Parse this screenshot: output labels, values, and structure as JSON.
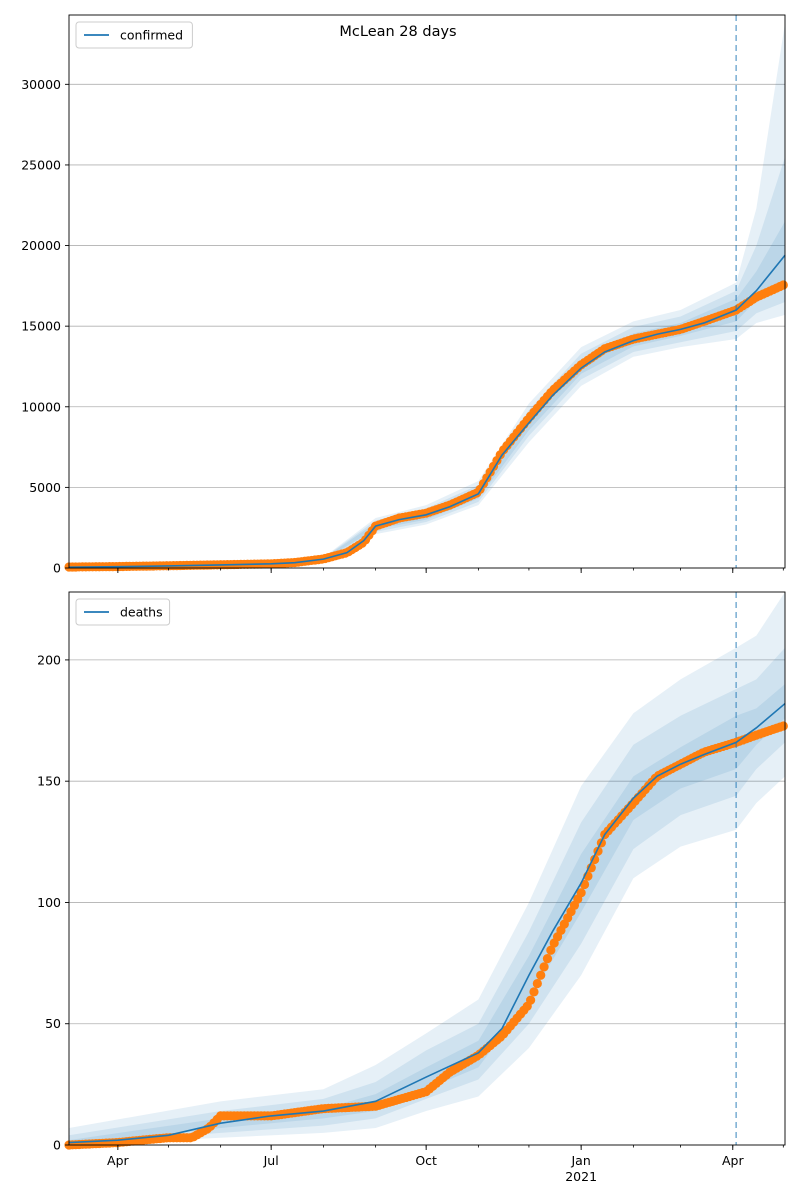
{
  "title": "McLean 28 days",
  "colors": {
    "model_line": "#1f77b4",
    "band_fill": "#1f77b4",
    "observed_points": "#ff7f0e",
    "forecast_divider": "#1f77b4",
    "grid": "#b0b0b0"
  },
  "chart_data": [
    {
      "type": "line",
      "title": "McLean 28 days",
      "legend": {
        "entries": [
          "confirmed"
        ],
        "position": "top-left"
      },
      "x_axis": {
        "type": "date",
        "range": [
          "2020-03-03",
          "2021-05-02"
        ],
        "tick_labels": [
          {
            "date": "2020-04-01",
            "label": "Apr"
          },
          {
            "date": "2020-07-01",
            "label": "Jul"
          },
          {
            "date": "2020-10-01",
            "label": "Oct"
          },
          {
            "date": "2021-01-01",
            "label": "Jan",
            "sublabel": "2021"
          },
          {
            "date": "2021-04-01",
            "label": "Apr"
          }
        ],
        "tick_labels_visible": false
      },
      "y_axis": {
        "range": [
          0,
          34300
        ],
        "ticks": [
          0,
          5000,
          10000,
          15000,
          20000,
          25000,
          30000
        ]
      },
      "grid": {
        "y": true,
        "x": false
      },
      "forecast_start": "2021-04-03",
      "series": [
        {
          "name": "confirmed",
          "kind": "model",
          "x": [
            "2020-03-03",
            "2020-04-01",
            "2020-05-01",
            "2020-06-01",
            "2020-07-01",
            "2020-07-15",
            "2020-08-01",
            "2020-08-15",
            "2020-08-25",
            "2020-09-01",
            "2020-09-15",
            "2020-10-01",
            "2020-10-15",
            "2020-11-01",
            "2020-11-15",
            "2020-12-01",
            "2020-12-15",
            "2021-01-01",
            "2021-01-15",
            "2021-02-01",
            "2021-02-15",
            "2021-03-01",
            "2021-03-15",
            "2021-04-03",
            "2021-04-15",
            "2021-05-02"
          ],
          "y": [
            50,
            80,
            130,
            190,
            260,
            330,
            550,
            950,
            1700,
            2600,
            3000,
            3300,
            3800,
            4600,
            7000,
            9000,
            10700,
            12400,
            13400,
            14100,
            14500,
            14800,
            15200,
            16000,
            17200,
            19400
          ]
        },
        {
          "name": "",
          "kind": "observed",
          "x": [
            "2020-03-03",
            "2020-04-01",
            "2020-05-01",
            "2020-06-01",
            "2020-07-01",
            "2020-07-15",
            "2020-08-01",
            "2020-08-15",
            "2020-08-25",
            "2020-09-01",
            "2020-09-15",
            "2020-10-01",
            "2020-10-15",
            "2020-11-01",
            "2020-11-15",
            "2020-12-01",
            "2020-12-15",
            "2021-01-01",
            "2021-01-15",
            "2021-02-01",
            "2021-02-15",
            "2021-03-01",
            "2021-03-15",
            "2021-04-03",
            "2021-04-15",
            "2021-05-02"
          ],
          "y": [
            60,
            90,
            140,
            200,
            260,
            340,
            560,
            950,
            1600,
            2600,
            3100,
            3400,
            3900,
            4700,
            7200,
            9300,
            11000,
            12600,
            13600,
            14200,
            14500,
            14800,
            15300,
            16000,
            16800,
            17600
          ]
        }
      ],
      "bands": [
        {
          "x": [
            "2020-03-03",
            "2020-06-01",
            "2020-08-01",
            "2020-09-01",
            "2020-10-01",
            "2020-11-01",
            "2020-12-01",
            "2021-01-01",
            "2021-02-01",
            "2021-03-01",
            "2021-04-03",
            "2021-04-15",
            "2021-05-02"
          ],
          "lower": [
            30,
            150,
            450,
            2100,
            2700,
            3900,
            7800,
            11300,
            13100,
            13700,
            14200,
            15200,
            15700
          ],
          "upper": [
            70,
            230,
            650,
            3100,
            3900,
            5400,
            10200,
            13700,
            15300,
            16000,
            17700,
            22300,
            33800
          ]
        },
        {
          "x": [
            "2020-03-03",
            "2020-06-01",
            "2020-08-01",
            "2020-09-01",
            "2020-10-01",
            "2020-11-01",
            "2020-12-01",
            "2021-01-01",
            "2021-02-01",
            "2021-03-01",
            "2021-04-03",
            "2021-04-15",
            "2021-05-02"
          ],
          "lower": [
            35,
            160,
            480,
            2250,
            2850,
            4100,
            8200,
            11700,
            13400,
            14000,
            14700,
            15800,
            16500
          ],
          "upper": [
            65,
            220,
            620,
            2950,
            3700,
            5150,
            9800,
            13300,
            14950,
            15600,
            17200,
            20000,
            25500
          ]
        },
        {
          "x": [
            "2020-03-03",
            "2020-06-01",
            "2020-08-01",
            "2020-09-01",
            "2020-10-01",
            "2020-11-01",
            "2020-12-01",
            "2021-01-01",
            "2021-02-01",
            "2021-03-01",
            "2021-04-03",
            "2021-04-15",
            "2021-05-02"
          ],
          "lower": [
            40,
            170,
            510,
            2400,
            3000,
            4300,
            8550,
            12050,
            13750,
            14400,
            15300,
            16600,
            17800
          ],
          "upper": [
            60,
            210,
            590,
            2800,
            3550,
            4900,
            9450,
            12850,
            14550,
            15200,
            16700,
            18400,
            21500
          ]
        }
      ]
    },
    {
      "type": "line",
      "title": "",
      "legend": {
        "entries": [
          "deaths"
        ],
        "position": "top-left"
      },
      "x_axis": {
        "type": "date",
        "range": [
          "2020-03-03",
          "2021-05-02"
        ],
        "tick_labels": [
          {
            "date": "2020-04-01",
            "label": "Apr"
          },
          {
            "date": "2020-07-01",
            "label": "Jul"
          },
          {
            "date": "2020-10-01",
            "label": "Oct"
          },
          {
            "date": "2021-01-01",
            "label": "Jan",
            "sublabel": "2021"
          },
          {
            "date": "2021-04-01",
            "label": "Apr"
          }
        ],
        "tick_labels_visible": true
      },
      "y_axis": {
        "range": [
          0,
          228
        ],
        "ticks": [
          0,
          50,
          100,
          150,
          200
        ]
      },
      "grid": {
        "y": true,
        "x": false
      },
      "forecast_start": "2021-04-03",
      "series": [
        {
          "name": "deaths",
          "kind": "model",
          "x": [
            "2020-03-03",
            "2020-04-01",
            "2020-05-01",
            "2020-06-01",
            "2020-07-01",
            "2020-08-01",
            "2020-09-01",
            "2020-10-01",
            "2020-11-01",
            "2020-11-15",
            "2020-12-01",
            "2020-12-15",
            "2021-01-01",
            "2021-01-15",
            "2021-02-01",
            "2021-02-15",
            "2021-03-01",
            "2021-03-15",
            "2021-04-03",
            "2021-04-15",
            "2021-05-02"
          ],
          "y": [
            1,
            2,
            4,
            9,
            12,
            14,
            18,
            28,
            38,
            48,
            70,
            88,
            108,
            128,
            143,
            152,
            157,
            161,
            166,
            172,
            182
          ]
        },
        {
          "name": "",
          "kind": "observed",
          "x": [
            "2020-03-03",
            "2020-04-01",
            "2020-04-15",
            "2020-05-01",
            "2020-05-15",
            "2020-05-25",
            "2020-06-01",
            "2020-07-01",
            "2020-08-01",
            "2020-09-01",
            "2020-10-01",
            "2020-10-15",
            "2020-11-01",
            "2020-11-15",
            "2020-12-01",
            "2020-12-15",
            "2021-01-01",
            "2021-01-15",
            "2021-02-01",
            "2021-02-15",
            "2021-03-01",
            "2021-03-15",
            "2021-04-03",
            "2021-04-15",
            "2021-05-02"
          ],
          "y": [
            0,
            1,
            2,
            3,
            3,
            7,
            12,
            12,
            15,
            16,
            22,
            30,
            37,
            45,
            58,
            82,
            104,
            128,
            141,
            152,
            157,
            162,
            166,
            169,
            173
          ]
        }
      ],
      "bands": [
        {
          "x": [
            "2020-03-03",
            "2020-06-01",
            "2020-08-01",
            "2020-09-01",
            "2020-10-01",
            "2020-11-01",
            "2020-12-01",
            "2021-01-01",
            "2021-02-01",
            "2021-03-01",
            "2021-04-03",
            "2021-04-15",
            "2021-05-02"
          ],
          "lower": [
            0,
            3,
            5,
            7,
            14,
            20,
            40,
            70,
            110,
            123,
            130,
            141,
            152
          ],
          "upper": [
            7,
            18,
            23,
            33,
            46,
            60,
            100,
            148,
            178,
            192,
            205,
            210,
            228
          ]
        },
        {
          "x": [
            "2020-03-03",
            "2020-06-01",
            "2020-08-01",
            "2020-09-01",
            "2020-10-01",
            "2020-11-01",
            "2020-12-01",
            "2021-01-01",
            "2021-02-01",
            "2021-03-01",
            "2021-04-03",
            "2021-04-15",
            "2021-05-02"
          ],
          "lower": [
            0,
            5,
            8,
            11,
            19,
            27,
            50,
            83,
            122,
            136,
            144,
            155,
            166
          ],
          "upper": [
            4,
            14,
            19,
            26,
            39,
            50,
            88,
            133,
            165,
            177,
            188,
            192,
            205
          ]
        },
        {
          "x": [
            "2020-03-03",
            "2020-06-01",
            "2020-08-01",
            "2020-09-01",
            "2020-10-01",
            "2020-11-01",
            "2020-12-01",
            "2021-01-01",
            "2021-02-01",
            "2021-03-01",
            "2021-04-03",
            "2021-04-15",
            "2021-05-02"
          ],
          "lower": [
            0,
            7,
            11,
            14,
            23,
            32,
            60,
            96,
            134,
            147,
            155,
            165,
            176
          ],
          "upper": [
            2,
            11,
            15,
            21,
            32,
            43,
            78,
            120,
            152,
            164,
            177,
            180,
            190
          ]
        }
      ]
    }
  ]
}
